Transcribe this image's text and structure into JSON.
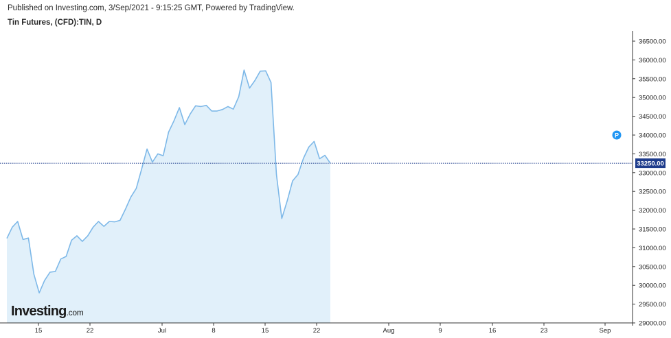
{
  "header": {
    "published": "Published on Investing.com, 3/Sep/2021 - 9:15:25 GMT, Powered by TradingView.",
    "symbol": "Tin Futures, (CFD):TIN, D"
  },
  "brand": {
    "main": "Investing",
    "suffix": ".com"
  },
  "colors": {
    "line": "#7db8e8",
    "fill": "#e1f0fa",
    "last_price_line": "#1e3c8c",
    "last_price_bg": "#1e3c8c",
    "marker": "#2196f3",
    "axis": "#333333"
  },
  "chart_data": {
    "type": "area",
    "title": "Tin Futures, (CFD):TIN, D",
    "xlabel": "",
    "ylabel": "",
    "ylim": [
      29000,
      36800
    ],
    "x_tick_labels": [
      "15",
      "22",
      "Jul",
      "8",
      "15",
      "22",
      "Aug",
      "9",
      "16",
      "23",
      "Sep"
    ],
    "y_tick_labels": [
      "29000.00",
      "29500.00",
      "30000.00",
      "30500.00",
      "31000.00",
      "31500.00",
      "32000.00",
      "32500.00",
      "33000.00",
      "33500.00",
      "34000.00",
      "34500.00",
      "35000.00",
      "35500.00",
      "36000.00",
      "36500.00"
    ],
    "y_ticks": [
      29000,
      29500,
      30000,
      30500,
      31000,
      31500,
      32000,
      32500,
      33000,
      33500,
      34000,
      34500,
      35000,
      35500,
      36000,
      36500
    ],
    "last_price": 33250,
    "last_price_label": "33250.00",
    "marker_label": "P",
    "marker_value": 34000,
    "grid": false,
    "values": [
      31250,
      31550,
      31700,
      31220,
      31260,
      30300,
      29800,
      30130,
      30350,
      30370,
      30700,
      30770,
      31200,
      31320,
      31170,
      31320,
      31550,
      31700,
      31570,
      31700,
      31690,
      31730,
      32030,
      32350,
      32580,
      33100,
      33630,
      33280,
      33500,
      33450,
      34080,
      34380,
      34730,
      34280,
      34560,
      34780,
      34760,
      34790,
      34640,
      34640,
      34680,
      34760,
      34690,
      35020,
      35730,
      35250,
      35450,
      35700,
      35710,
      35400,
      32950,
      31780,
      32250,
      32780,
      32950,
      33380,
      33680,
      33830,
      33370,
      33460,
      33250
    ]
  }
}
